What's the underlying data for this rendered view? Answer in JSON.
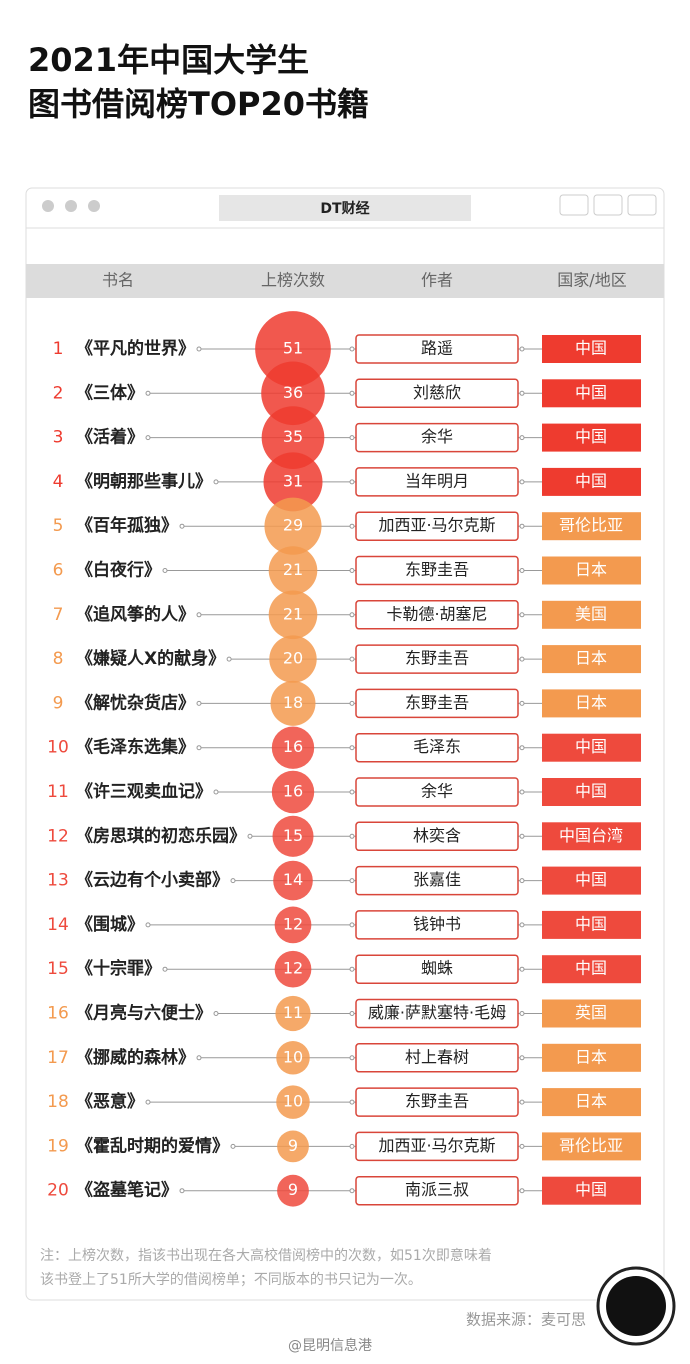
{
  "title_lines": [
    "2021年中国大学生",
    "图书借阅榜TOP20书籍"
  ],
  "window_title": "DT财经",
  "chart_data": {
    "type": "bubble-ranking",
    "headers": [
      "书名",
      "上榜次数",
      "作者",
      "国家/地区"
    ],
    "ranks": [
      1,
      2,
      3,
      4,
      5,
      6,
      7,
      8,
      9,
      10,
      11,
      12,
      13,
      14,
      15,
      16,
      17,
      18,
      19,
      20
    ],
    "categories": [
      "《平凡的世界》",
      "《三体》",
      "《活着》",
      "《明朝那些事儿》",
      "《百年孤独》",
      "《白夜行》",
      "《追风筝的人》",
      "《嫌疑人X的献身》",
      "《解忧杂货店》",
      "《毛泽东选集》",
      "《许三观卖血记》",
      "《房思琪的初恋乐园》",
      "《云边有个小卖部》",
      "《围城》",
      "《十宗罪》",
      "《月亮与六便士》",
      "《挪威的森林》",
      "《恶意》",
      "《霍乱时期的爱情》",
      "《盗墓笔记》"
    ],
    "values": [
      51,
      36,
      35,
      31,
      29,
      21,
      21,
      20,
      18,
      16,
      16,
      15,
      14,
      12,
      12,
      11,
      10,
      10,
      9,
      9
    ],
    "authors": [
      "路遥",
      "刘慈欣",
      "余华",
      "当年明月",
      "加西亚·马尔克斯",
      "东野圭吾",
      "卡勒德·胡塞尼",
      "东野圭吾",
      "东野圭吾",
      "毛泽东",
      "余华",
      "林奕含",
      "张嘉佳",
      "钱钟书",
      "蜘蛛",
      "威廉·萨默塞特·毛姆",
      "村上春树",
      "东野圭吾",
      "加西亚·马尔克斯",
      "南派三叔"
    ],
    "countries": [
      "中国",
      "中国",
      "中国",
      "中国",
      "哥伦比亚",
      "日本",
      "美国",
      "日本",
      "日本",
      "中国",
      "中国",
      "中国台湾",
      "中国",
      "中国",
      "中国",
      "英国",
      "日本",
      "日本",
      "哥伦比亚",
      "中国"
    ],
    "colors": [
      "#ee3b2f",
      "#ee3b2f",
      "#ee3b2f",
      "#ee3b2f",
      "#f39a4f",
      "#f39a4f",
      "#f39a4f",
      "#f39a4f",
      "#f39a4f",
      "#ee4a3d",
      "#ee4a3d",
      "#ee4a3d",
      "#ee4a3d",
      "#ee4a3d",
      "#ee4a3d",
      "#f39a4f",
      "#f39a4f",
      "#f39a4f",
      "#f39a4f",
      "#ee4a3d"
    ]
  },
  "note_lines": [
    "注：上榜次数，指该书出现在各大高校借阅榜中的次数，如51次即意味着",
    "该书登上了51所大学的借阅榜单；不同版本的书只记为一次。"
  ],
  "source": "数据来源：麦可思",
  "watermark": "@昆明信息港"
}
